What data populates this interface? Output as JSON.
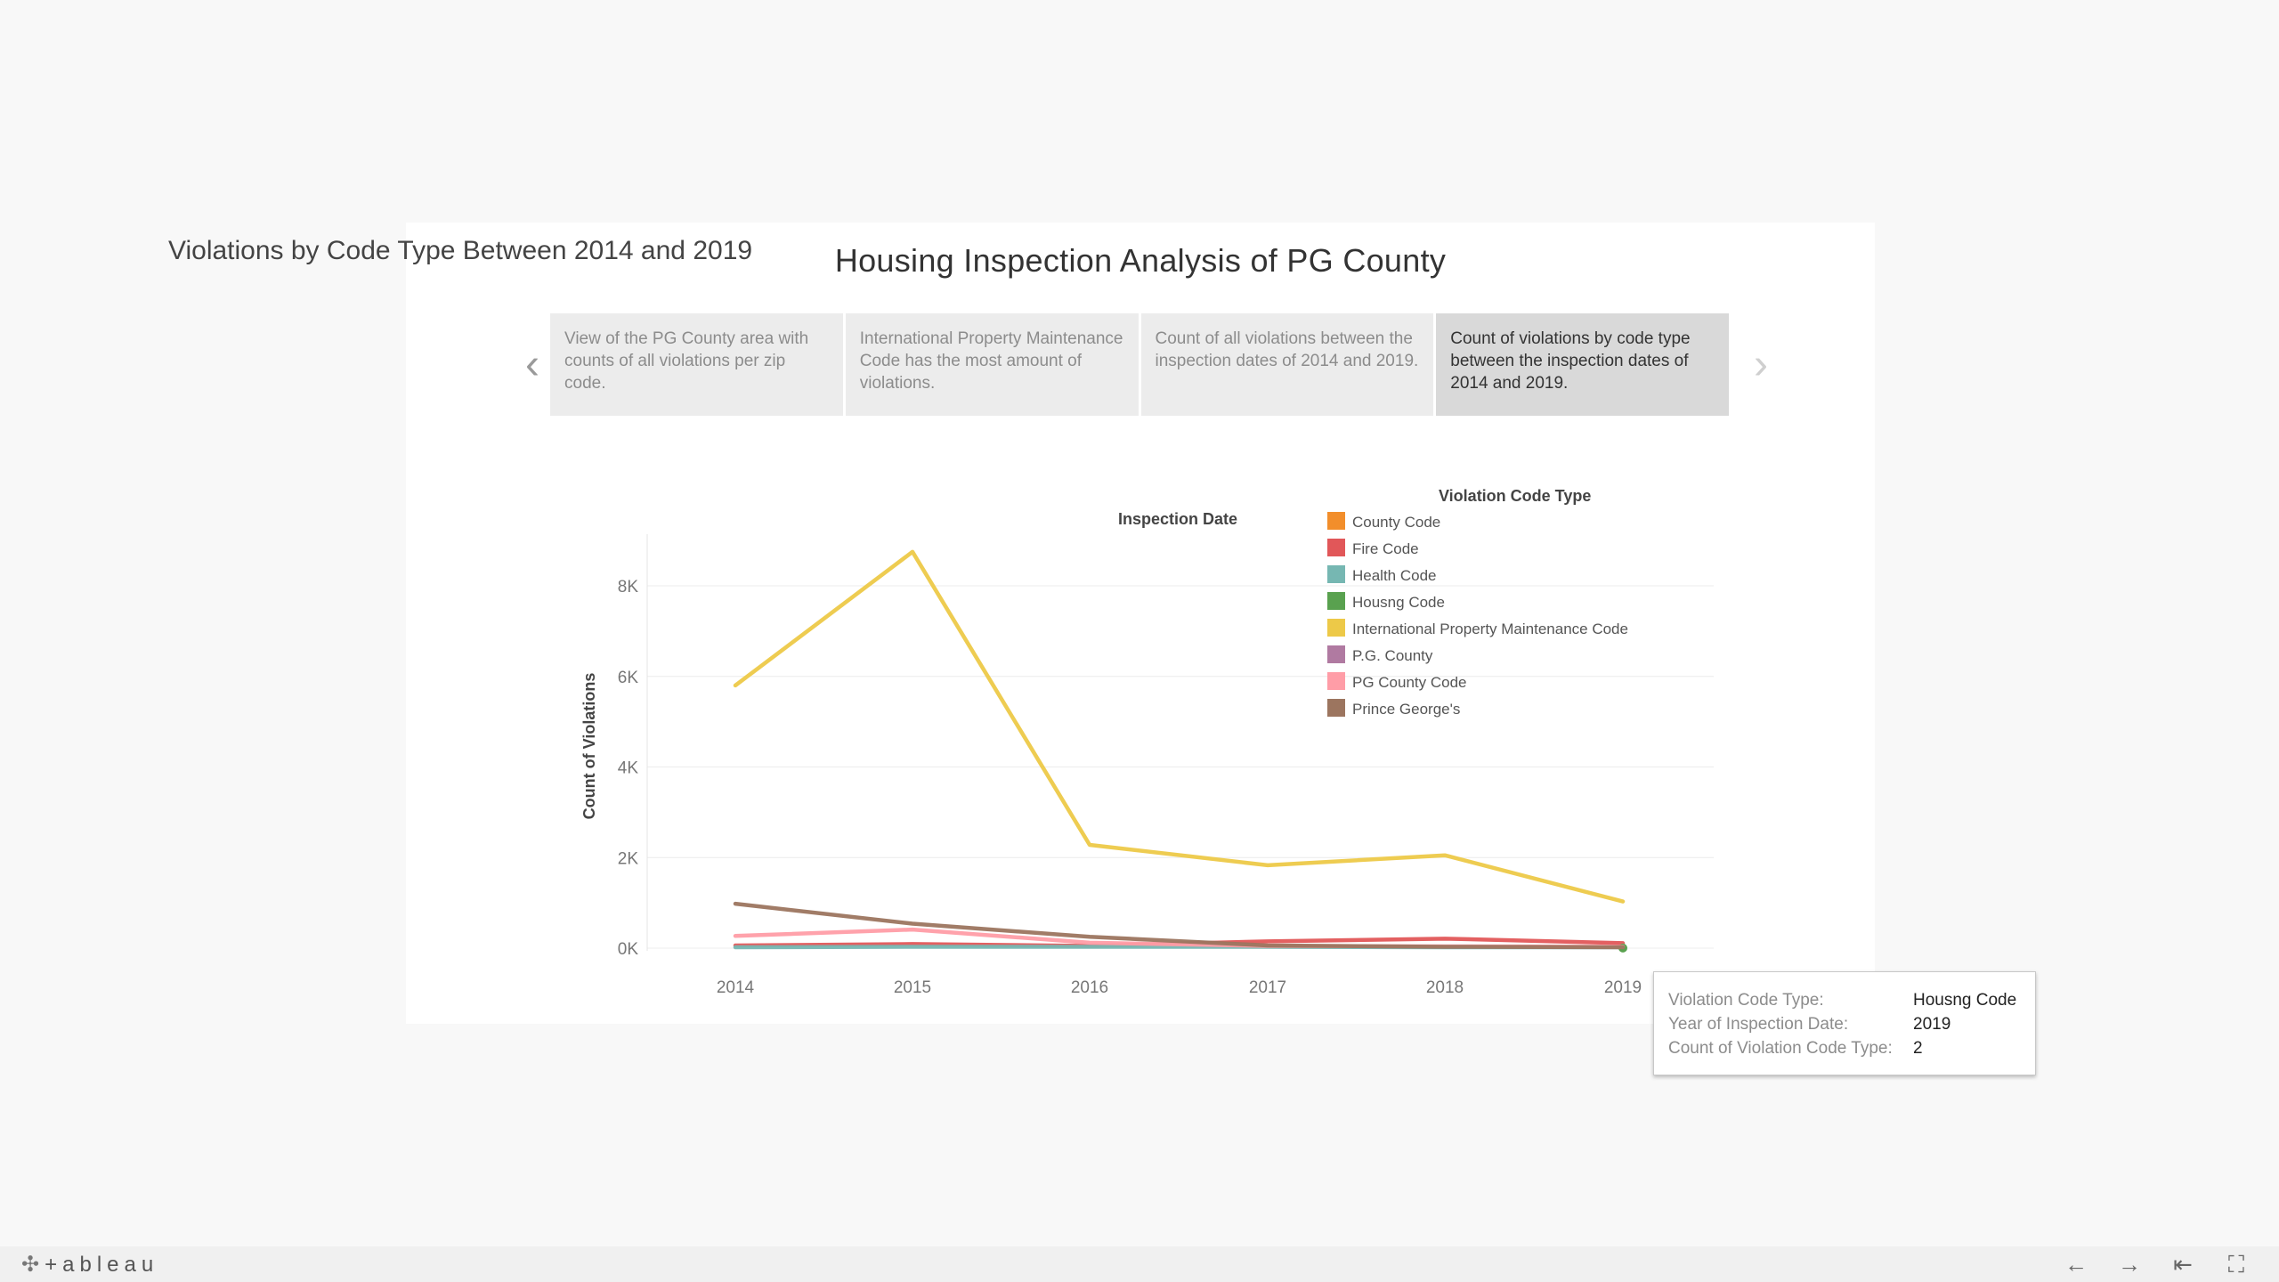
{
  "story": {
    "title": "Housing Inspection Analysis of PG County",
    "points": [
      {
        "text": "View of the PG County area with counts of all violations per zip code.",
        "active": false
      },
      {
        "text": "International Property Maintenance Code has the most amount of violations.",
        "active": false
      },
      {
        "text": "Count of all violations between the inspection dates of 2014 and 2019.",
        "active": false
      },
      {
        "text": "Count of violations by code type between the inspection dates of 2014 and 2019.",
        "active": true
      }
    ],
    "prev_icon": "chevron-left-icon",
    "next_icon": "chevron-right-icon"
  },
  "chart_data": {
    "type": "line",
    "title": "Violations by Code Type Between 2014 and 2019",
    "xlabel": "Inspection Date",
    "ylabel": "Count of Violations",
    "x": [
      "2014",
      "2015",
      "2016",
      "2017",
      "2018",
      "2019"
    ],
    "ylim": [
      0,
      9000
    ],
    "yticks": [
      0,
      2000,
      4000,
      6000,
      8000
    ],
    "ytick_labels": [
      "0K",
      "2K",
      "4K",
      "6K",
      "8K"
    ],
    "grid": true,
    "legend_title": "Violation Code Type",
    "legend_position": "top-right",
    "series": [
      {
        "name": "County Code",
        "color": "#f28e2b",
        "values": [
          null,
          null,
          null,
          null,
          null,
          null
        ]
      },
      {
        "name": "Fire Code",
        "color": "#e15759",
        "values": [
          60,
          90,
          50,
          150,
          210,
          110
        ]
      },
      {
        "name": "Health Code",
        "color": "#76b7b2",
        "values": [
          20,
          30,
          30,
          30,
          20,
          20
        ]
      },
      {
        "name": "Housng Code",
        "color": "#59a14f",
        "values": [
          null,
          null,
          null,
          null,
          null,
          2
        ]
      },
      {
        "name": "International Property Maintenance Code",
        "color": "#edc948",
        "values": [
          5800,
          8750,
          2280,
          1830,
          2050,
          1030
        ]
      },
      {
        "name": "P.G. County",
        "color": "#b07aa1",
        "values": [
          null,
          null,
          null,
          null,
          null,
          null
        ]
      },
      {
        "name": "PG County Code",
        "color": "#ff9da7",
        "values": [
          270,
          410,
          120,
          50,
          40,
          30
        ]
      },
      {
        "name": "Prince George's",
        "color": "#9c755f",
        "values": [
          980,
          540,
          250,
          60,
          30,
          20
        ]
      }
    ]
  },
  "tooltip": {
    "rows": [
      {
        "key": "Violation Code Type:",
        "value": "Housng Code"
      },
      {
        "key": "Year of Inspection Date:",
        "value": "2019"
      },
      {
        "key": "Count of Violation Code Type:",
        "value": "2"
      }
    ]
  },
  "footer": {
    "logo": "+ableau",
    "buttons": [
      {
        "name": "undo-button",
        "icon": "arrow-left-icon",
        "glyph": "←"
      },
      {
        "name": "redo-button",
        "icon": "arrow-right-icon",
        "glyph": "→"
      },
      {
        "name": "revert-button",
        "icon": "revert-icon",
        "glyph": "⇤"
      },
      {
        "name": "fullscreen-button",
        "icon": "fullscreen-icon",
        "glyph": "⛶"
      }
    ]
  }
}
